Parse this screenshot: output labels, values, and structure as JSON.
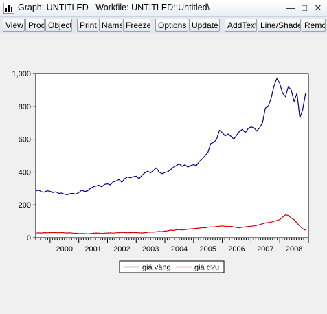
{
  "window": {
    "title": "Graph: UNTITLED   Workfile: UNTITLED::Untitled\\",
    "minimize": "—",
    "maximize": "□",
    "close": "✕"
  },
  "toolbar": {
    "buttons": [
      "View",
      "Proc",
      "Object",
      "Print",
      "Name",
      "Freeze",
      "Options",
      "Update",
      "AddText",
      "Line/Shade",
      "Remo"
    ]
  },
  "chart_data": {
    "type": "line",
    "title": "",
    "xlabel": "",
    "ylabel": "",
    "ylim": [
      0,
      1000
    ],
    "xlim": [
      1999.5,
      2009.0
    ],
    "y_ticks": [
      "0",
      "200",
      "400",
      "600",
      "800",
      "1,000"
    ],
    "x_ticks": [
      "2000",
      "2001",
      "2002",
      "2003",
      "2004",
      "2005",
      "2006",
      "2007",
      "2008"
    ],
    "grid": false,
    "legend_position": "bottom-center",
    "series": [
      {
        "name": "giá vàng",
        "color": "#000080",
        "x": [
          1999.5,
          1999.6,
          1999.7,
          1999.8,
          1999.9,
          2000.0,
          2000.1,
          2000.2,
          2000.3,
          2000.4,
          2000.5,
          2000.6,
          2000.7,
          2000.8,
          2000.9,
          2001.0,
          2001.1,
          2001.2,
          2001.3,
          2001.4,
          2001.5,
          2001.6,
          2001.7,
          2001.8,
          2001.9,
          2002.0,
          2002.1,
          2002.2,
          2002.3,
          2002.4,
          2002.5,
          2002.6,
          2002.7,
          2002.8,
          2002.9,
          2003.0,
          2003.1,
          2003.2,
          2003.3,
          2003.4,
          2003.5,
          2003.6,
          2003.7,
          2003.8,
          2003.9,
          2004.0,
          2004.1,
          2004.2,
          2004.3,
          2004.4,
          2004.5,
          2004.6,
          2004.7,
          2004.8,
          2004.9,
          2005.0,
          2005.1,
          2005.2,
          2005.3,
          2005.4,
          2005.5,
          2005.6,
          2005.7,
          2005.8,
          2005.9,
          2006.0,
          2006.1,
          2006.2,
          2006.3,
          2006.4,
          2006.5,
          2006.6,
          2006.7,
          2006.8,
          2006.9,
          2007.0,
          2007.1,
          2007.2,
          2007.3,
          2007.4,
          2007.5,
          2007.6,
          2007.7,
          2007.8,
          2007.9,
          2008.0,
          2008.1,
          2008.2,
          2008.3,
          2008.4,
          2008.5,
          2008.6,
          2008.7,
          2008.8,
          2008.9
        ],
        "y": [
          285,
          290,
          280,
          278,
          286,
          283,
          275,
          280,
          270,
          272,
          265,
          262,
          268,
          270,
          265,
          275,
          290,
          282,
          285,
          300,
          310,
          315,
          320,
          310,
          325,
          328,
          322,
          340,
          345,
          355,
          338,
          360,
          370,
          365,
          372,
          375,
          360,
          380,
          395,
          405,
          395,
          410,
          425,
          400,
          390,
          398,
          402,
          415,
          430,
          440,
          450,
          435,
          445,
          430,
          440,
          445,
          440,
          465,
          480,
          500,
          520,
          575,
          580,
          600,
          655,
          640,
          620,
          632,
          618,
          600,
          625,
          648,
          660,
          640,
          665,
          675,
          670,
          650,
          670,
          700,
          790,
          800,
          850,
          925,
          970,
          940,
          880,
          860,
          920,
          900,
          830,
          880,
          730,
          780,
          880
        ]
      },
      {
        "name": "giá d?u",
        "color": "#cc0000",
        "x": [
          1999.5,
          1999.6,
          1999.7,
          1999.8,
          1999.9,
          2000.0,
          2000.1,
          2000.2,
          2000.3,
          2000.4,
          2000.5,
          2000.6,
          2000.7,
          2000.8,
          2000.9,
          2001.0,
          2001.1,
          2001.2,
          2001.3,
          2001.4,
          2001.5,
          2001.6,
          2001.7,
          2001.8,
          2001.9,
          2002.0,
          2002.1,
          2002.2,
          2002.3,
          2002.4,
          2002.5,
          2002.6,
          2002.7,
          2002.8,
          2002.9,
          2003.0,
          2003.1,
          2003.2,
          2003.3,
          2003.4,
          2003.5,
          2003.6,
          2003.7,
          2003.8,
          2003.9,
          2004.0,
          2004.1,
          2004.2,
          2004.3,
          2004.4,
          2004.5,
          2004.6,
          2004.7,
          2004.8,
          2004.9,
          2005.0,
          2005.1,
          2005.2,
          2005.3,
          2005.4,
          2005.5,
          2005.6,
          2005.7,
          2005.8,
          2005.9,
          2006.0,
          2006.1,
          2006.2,
          2006.3,
          2006.4,
          2006.5,
          2006.6,
          2006.7,
          2006.8,
          2006.9,
          2007.0,
          2007.1,
          2007.2,
          2007.3,
          2007.4,
          2007.5,
          2007.6,
          2007.7,
          2007.8,
          2007.9,
          2008.0,
          2008.1,
          2008.2,
          2008.3,
          2008.4,
          2008.5,
          2008.6,
          2008.7,
          2008.8,
          2008.9
        ],
        "y": [
          28,
          30,
          29,
          31,
          30,
          31,
          32,
          31,
          30,
          32,
          30,
          29,
          30,
          28,
          27,
          26,
          25,
          26,
          24,
          25,
          27,
          29,
          28,
          26,
          28,
          29,
          30,
          28,
          30,
          31,
          33,
          32,
          30,
          31,
          32,
          31,
          30,
          29,
          31,
          33,
          35,
          34,
          36,
          38,
          37,
          40,
          42,
          46,
          44,
          48,
          50,
          47,
          49,
          52,
          54,
          55,
          57,
          58,
          62,
          60,
          64,
          66,
          65,
          68,
          70,
          72,
          70,
          68,
          69,
          66,
          62,
          60,
          64,
          66,
          68,
          70,
          72,
          75,
          80,
          85,
          90,
          92,
          95,
          100,
          105,
          110,
          125,
          140,
          135,
          120,
          110,
          90,
          70,
          55,
          45
        ]
      }
    ]
  }
}
